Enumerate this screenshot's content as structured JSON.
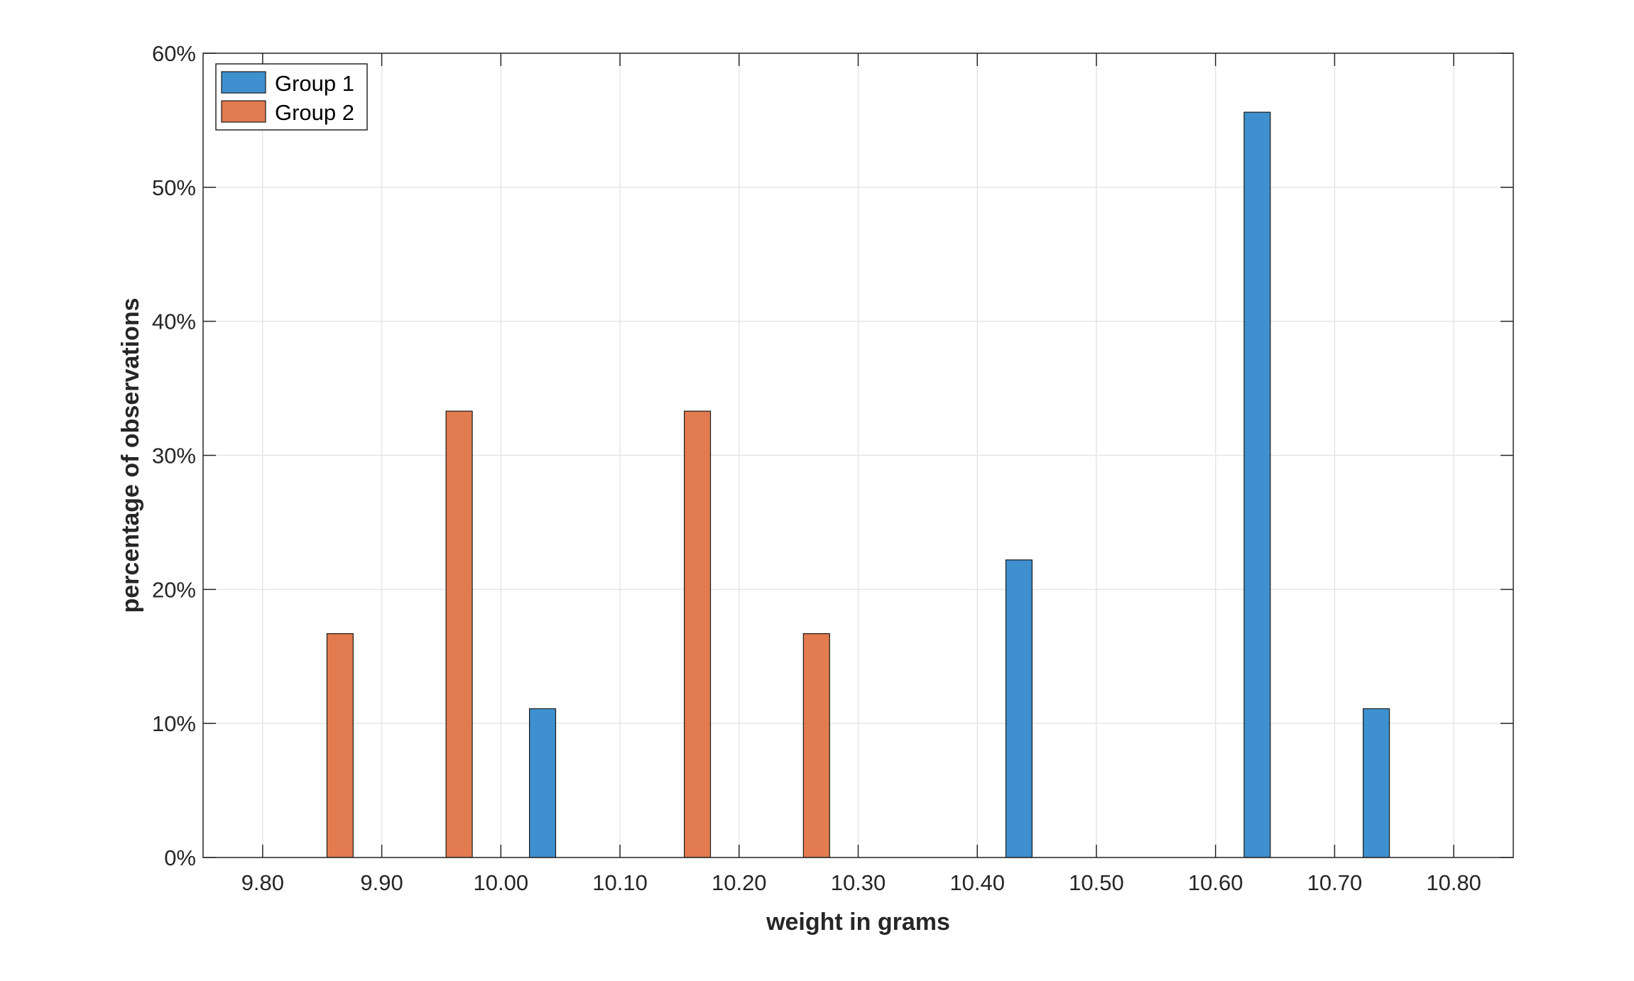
{
  "chart_data": {
    "type": "bar",
    "xlabel": "weight in grams",
    "ylabel": "percentage of observations",
    "xlim": [
      9.75,
      10.85
    ],
    "ylim": [
      0,
      60
    ],
    "x_ticks": [
      9.8,
      9.9,
      10.0,
      10.1,
      10.2,
      10.3,
      10.4,
      10.5,
      10.6,
      10.7,
      10.8
    ],
    "x_tick_labels": [
      "9.80",
      "9.90",
      "10.00",
      "10.10",
      "10.20",
      "10.30",
      "10.40",
      "10.50",
      "10.60",
      "10.70",
      "10.80"
    ],
    "y_ticks": [
      0,
      10,
      20,
      30,
      40,
      50,
      60
    ],
    "y_tick_labels": [
      "0%",
      "10%",
      "20%",
      "30%",
      "40%",
      "50%",
      "60%"
    ],
    "grid": true,
    "legend_position": "top-left",
    "bar_width": 0.022,
    "series": [
      {
        "name": "Group 1",
        "color": "#3e90cf",
        "x": [
          10.035,
          10.435,
          10.635,
          10.735
        ],
        "values": [
          11.1,
          22.2,
          55.6,
          11.1
        ]
      },
      {
        "name": "Group 2",
        "color": "#e27b4f",
        "x": [
          9.865,
          9.965,
          10.165,
          10.265
        ],
        "values": [
          16.7,
          33.3,
          33.3,
          16.7
        ]
      }
    ]
  }
}
